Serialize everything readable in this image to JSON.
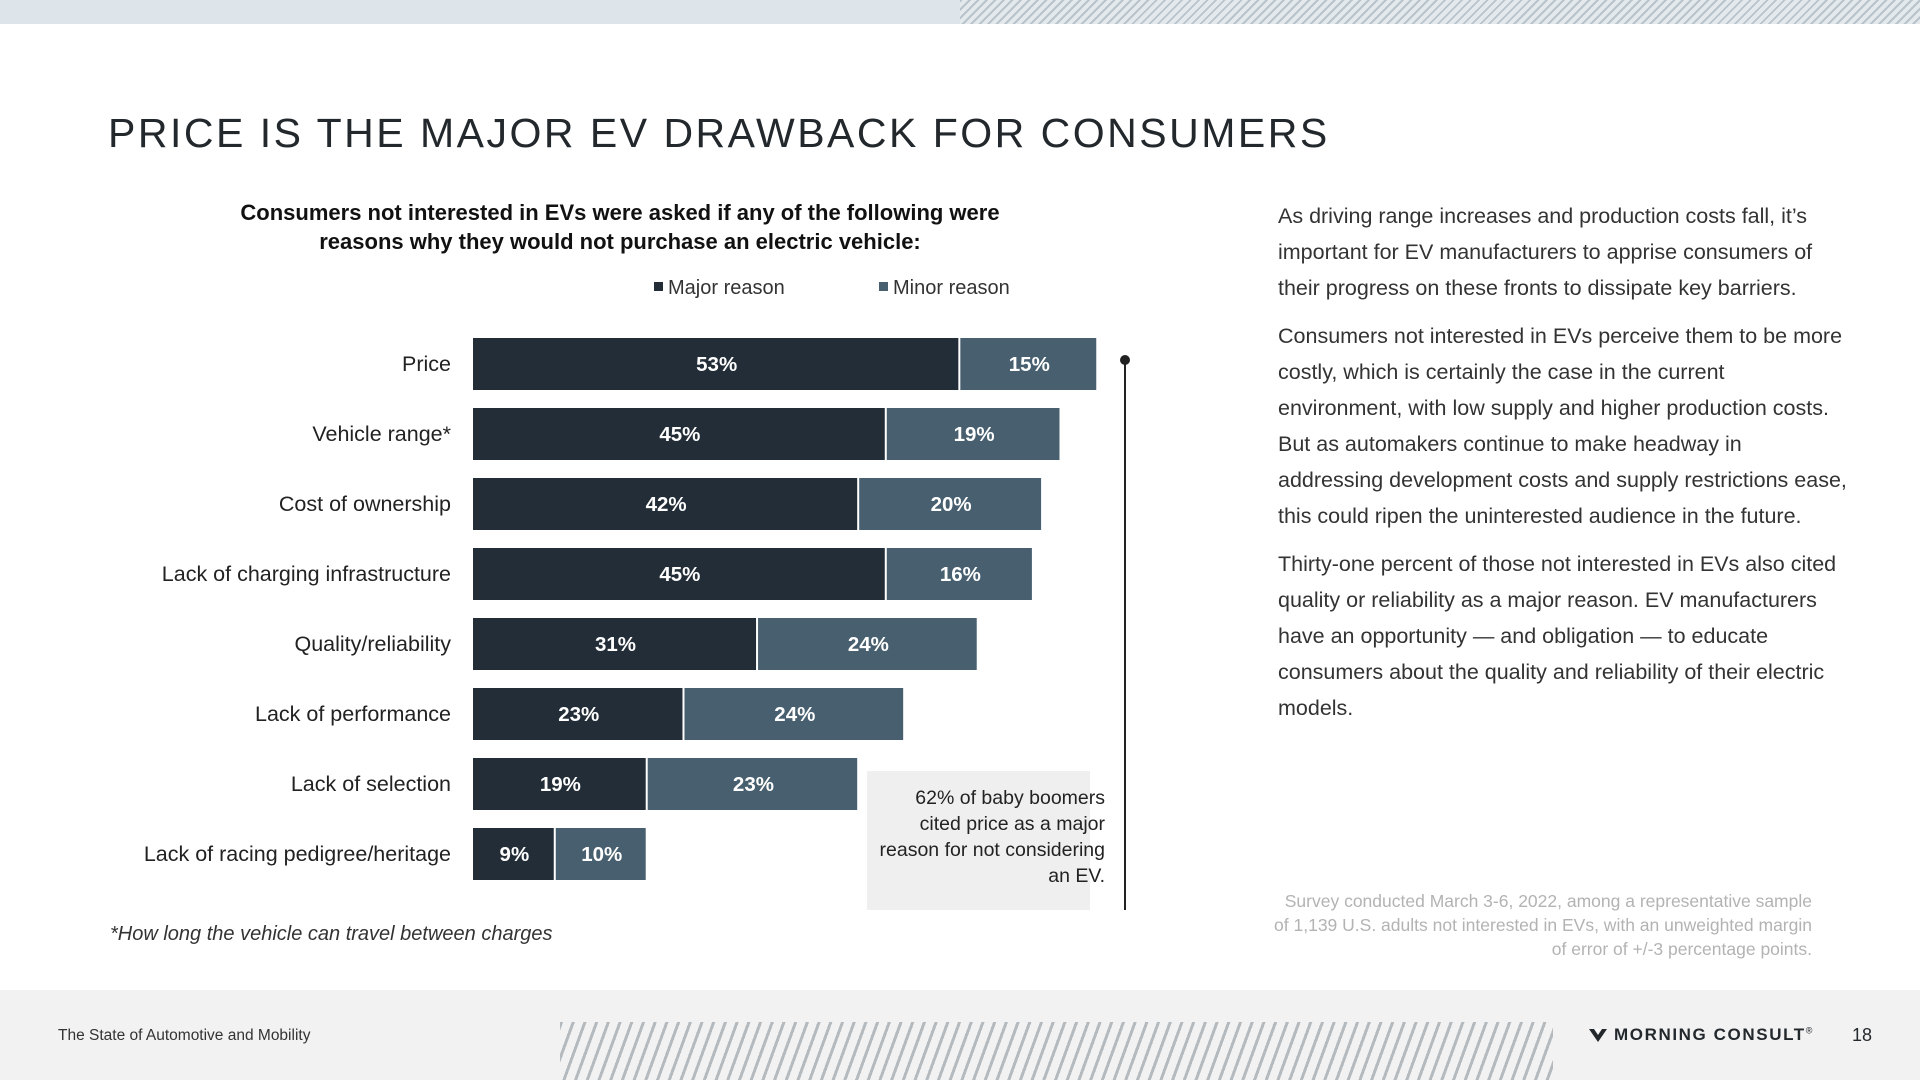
{
  "title": "PRICE IS THE MAJOR EV DRAWBACK FOR CONSUMERS",
  "question": "Consumers not interested in EVs were asked if any of the following were reasons why they would not purchase an electric vehicle:",
  "colors": {
    "major": "#232d37",
    "minor": "#475f6f",
    "label_text": "#ffffff"
  },
  "chart_data": {
    "type": "bar",
    "orientation": "horizontal",
    "stacked": true,
    "categories": [
      "Price",
      "Vehicle range*",
      "Cost of ownership",
      "Lack of charging infrastructure",
      "Quality/reliability",
      "Lack of performance",
      "Lack of selection",
      "Lack of racing pedigree/heritage"
    ],
    "series": [
      {
        "name": "Major reason",
        "values": [
          53,
          45,
          42,
          45,
          31,
          23,
          19,
          9
        ]
      },
      {
        "name": "Minor reason",
        "values": [
          15,
          19,
          20,
          16,
          24,
          24,
          23,
          10
        ]
      }
    ],
    "value_suffix": "%",
    "xlim": [
      0,
      100
    ],
    "legend_position": "top"
  },
  "callout": "62% of baby boomers cited price as a major reason for not considering an EV.",
  "footnote": "*How long the vehicle can travel between charges",
  "body": [
    "As driving range increases and production costs fall, it’s important for EV manufacturers to apprise consumers of their progress on these fronts to dissipate key barriers.",
    "Consumers not interested in EVs perceive them to be more costly, which is certainly the case in the current environment, with low supply and higher production costs. But as automakers continue to make headway in addressing development costs and supply restrictions ease, this could ripen the uninterested audience in the future.",
    "Thirty-one percent of those not interested in EVs also cited quality or reliability as a major reason. EV manufacturers have an opportunity — and obligation — to educate consumers about the quality and reliability of their electric models."
  ],
  "survey_note": "Survey conducted March 3-6, 2022, among a representative sample of 1,139 U.S. adults not interested in EVs, with an unweighted margin of error of +/-3 percentage points.",
  "footer": {
    "report_name": "The State of Automotive and Mobility",
    "brand": "MORNING CONSULT",
    "brand_mark": "®",
    "page_number": "18"
  },
  "icons": {
    "brand_logo": "morning-consult-logo-icon"
  }
}
